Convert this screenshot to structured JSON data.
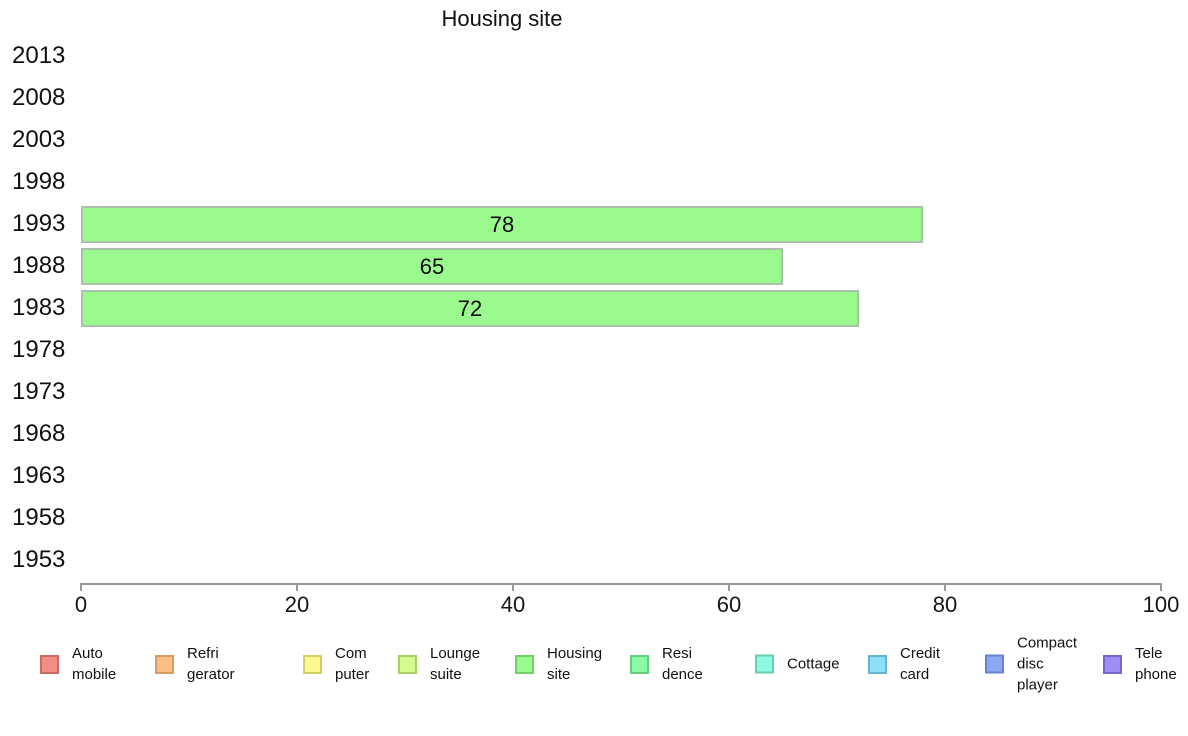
{
  "chart_data": {
    "type": "bar",
    "orientation": "horizontal",
    "title": "Housing site",
    "categories": [
      "2013",
      "2008",
      "2003",
      "1998",
      "1993",
      "1988",
      "1983",
      "1978",
      "1973",
      "1968",
      "1963",
      "1958",
      "1953"
    ],
    "values": [
      null,
      null,
      null,
      null,
      78,
      65,
      72,
      null,
      null,
      null,
      null,
      null,
      null
    ],
    "value_labels": [
      "",
      "",
      "",
      "",
      "78",
      "65",
      "72",
      "",
      "",
      "",
      "",
      "",
      ""
    ],
    "xlabel": "",
    "ylabel": "",
    "xlim": [
      0,
      100
    ],
    "xticks": [
      0,
      20,
      40,
      60,
      80,
      100
    ],
    "grid": false,
    "legend_position": "bottom",
    "bar_fill": "#9BFA8D",
    "bar_border": "#ABC0AB",
    "axis_color": "#999999"
  },
  "legend": {
    "items": [
      {
        "name": "automobile",
        "label": "Auto\nmobile",
        "fill": "#F48D88",
        "border": "#CC6B66"
      },
      {
        "name": "refrigerator",
        "label": "Refri\ngerator",
        "fill": "#FBBE86",
        "border": "#D49B62"
      },
      {
        "name": "computer",
        "label": "Com\nputer",
        "fill": "#FBF98E",
        "border": "#D3CF67"
      },
      {
        "name": "lounge-suite",
        "label": "Lounge\nsuite",
        "fill": "#D5FA8D",
        "border": "#AACF66"
      },
      {
        "name": "housing-site",
        "label": "Housing\nsite",
        "fill": "#9BFA8D",
        "border": "#72CE66"
      },
      {
        "name": "residence",
        "label": "Resi\ndence",
        "fill": "#8DFAA8",
        "border": "#66CE81"
      },
      {
        "name": "cottage",
        "label": "Cottage",
        "fill": "#8DFADF",
        "border": "#66CEB4"
      },
      {
        "name": "credit-card",
        "label": "Credit\ncard",
        "fill": "#8DDFFA",
        "border": "#66B4CE"
      },
      {
        "name": "compact-disc-player",
        "label": "Compact\ndisc\nplayer",
        "fill": "#8DA6F6",
        "border": "#6680CB"
      },
      {
        "name": "telephone",
        "label": "Tele\nphone",
        "fill": "#9E8DF6",
        "border": "#7A66CB"
      }
    ]
  }
}
